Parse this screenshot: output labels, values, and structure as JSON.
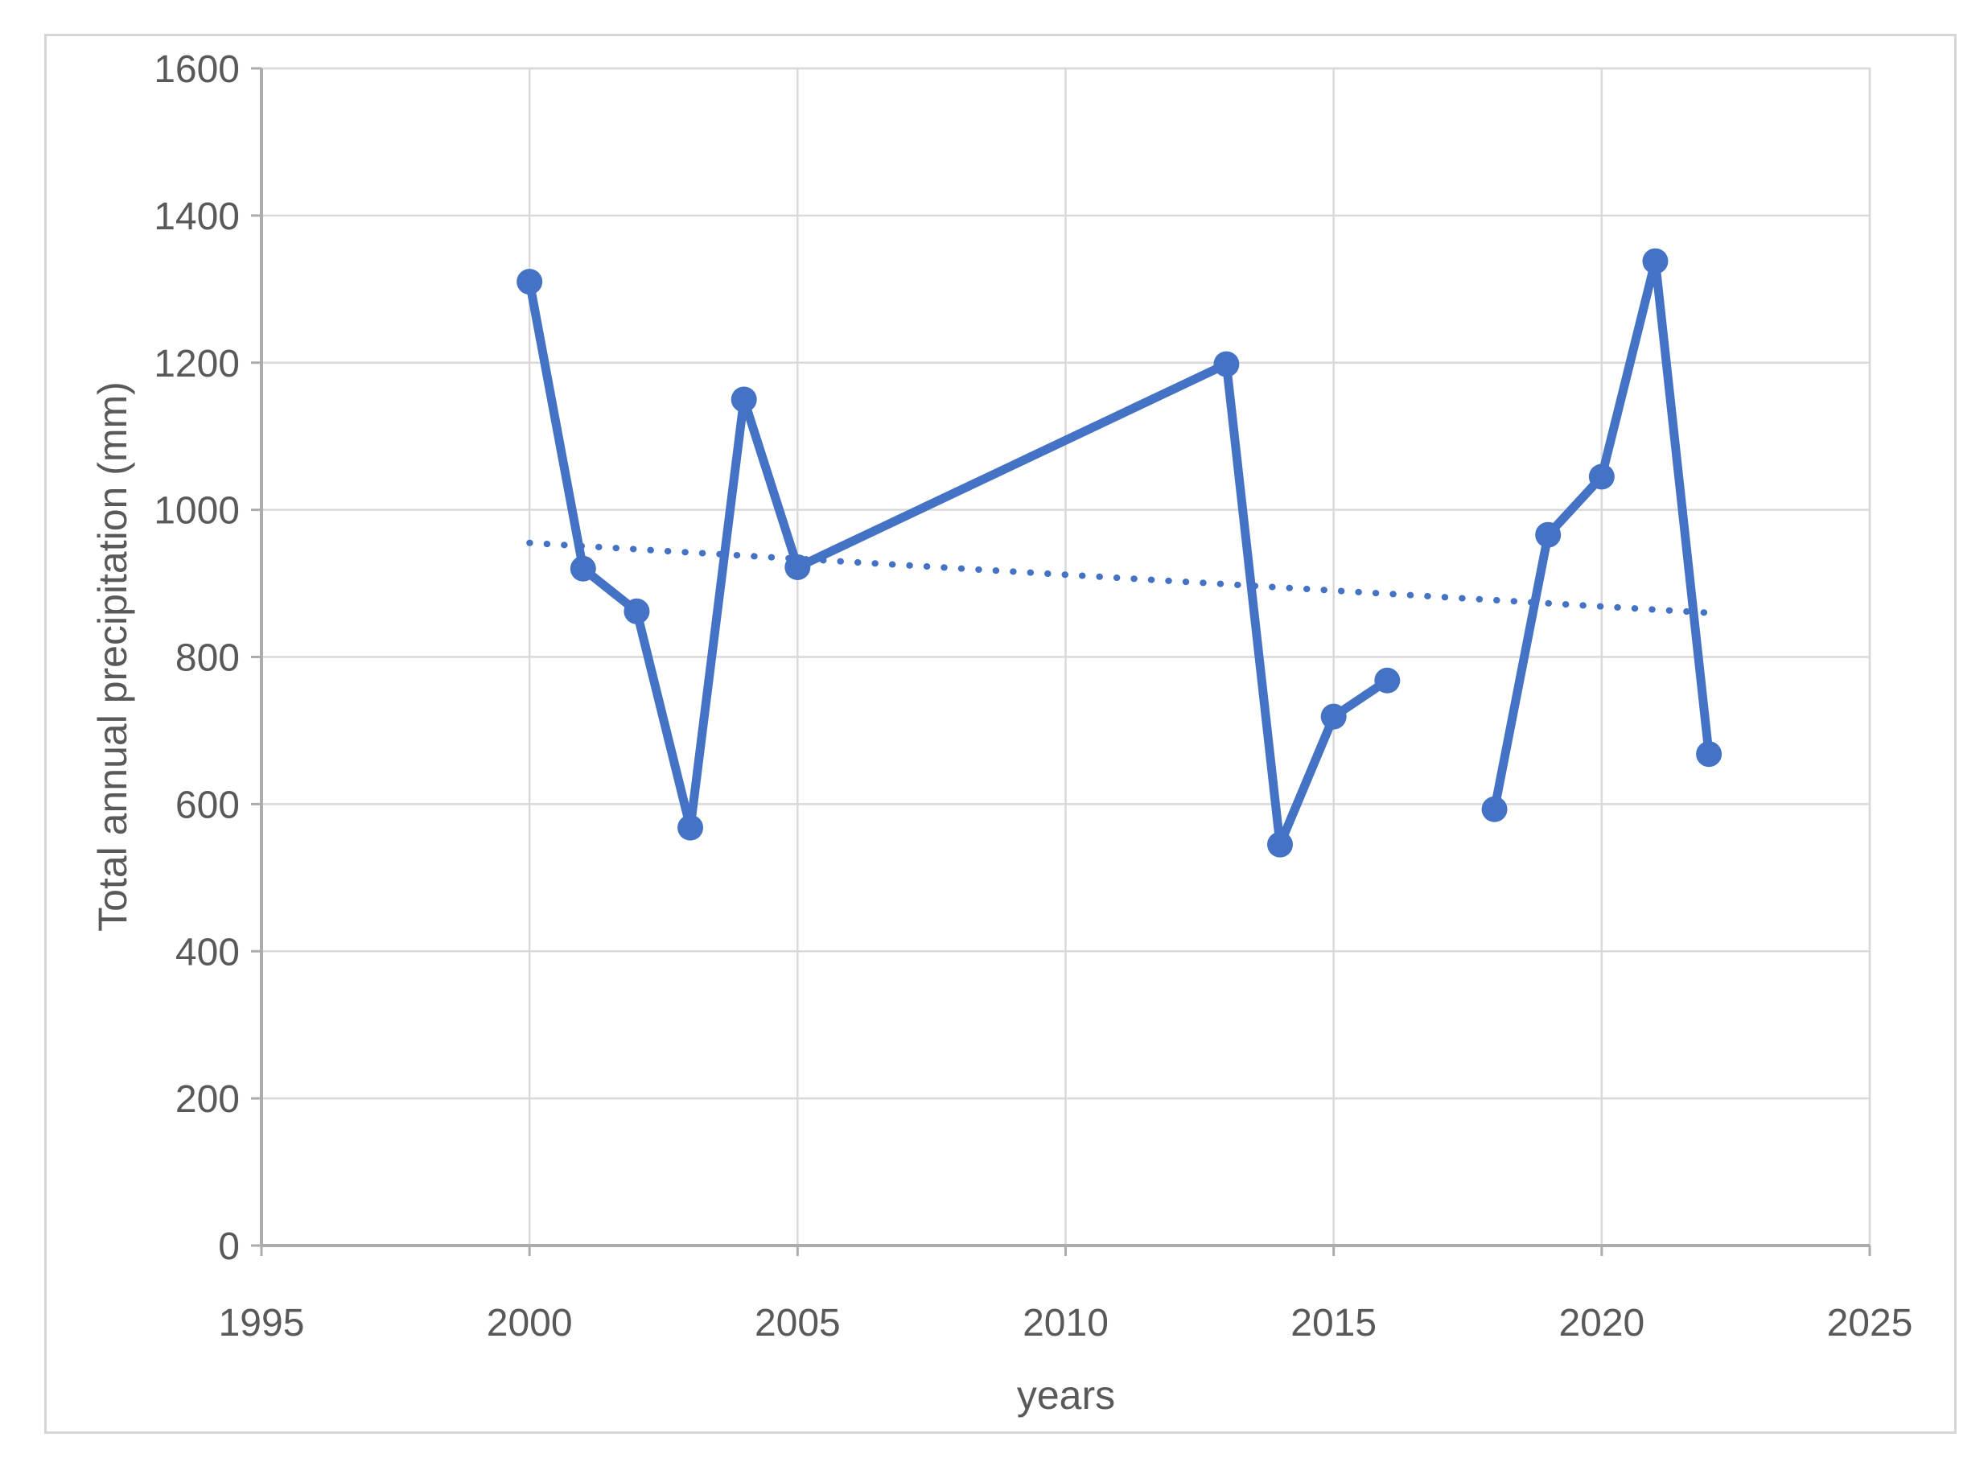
{
  "figure": {
    "background": "#ffffff",
    "border_color": "#d6d6d6"
  },
  "chart_data": {
    "type": "line",
    "title": "",
    "xlabel": "years",
    "ylabel": "Total annual precipitation (mm)",
    "xlim": [
      1995,
      2025
    ],
    "ylim": [
      0,
      1600
    ],
    "x_ticks": [
      1995,
      2000,
      2005,
      2010,
      2015,
      2020,
      2025
    ],
    "y_ticks": [
      0,
      200,
      400,
      600,
      800,
      1000,
      1200,
      1400,
      1600
    ],
    "grid": true,
    "legend": "none",
    "colors": {
      "series_blue": "#4472C4",
      "gridline": "#D9D9D9",
      "axis_line": "#ACACAC",
      "tick_label": "#595959"
    },
    "series": [
      {
        "name": "total annual precipitation",
        "style": "solid-with-markers",
        "color": "#4472C4",
        "marker": "circle",
        "segments": [
          {
            "x": [
              2000,
              2001,
              2002,
              2003,
              2004,
              2005,
              2013,
              2014,
              2015,
              2016
            ],
            "y": [
              1310,
              920,
              862,
              568,
              1150,
              922,
              1198,
              545,
              719,
              768
            ]
          },
          {
            "x": [
              2018,
              2019,
              2020,
              2021,
              2022
            ],
            "y": [
              593,
              966,
              1045,
              1338,
              668
            ]
          }
        ]
      },
      {
        "name": "linear trendline",
        "style": "dotted",
        "color": "#4472C4",
        "marker": "none",
        "segments": [
          {
            "x": [
              2000,
              2022
            ],
            "y": [
              955,
              860
            ]
          }
        ]
      }
    ]
  }
}
